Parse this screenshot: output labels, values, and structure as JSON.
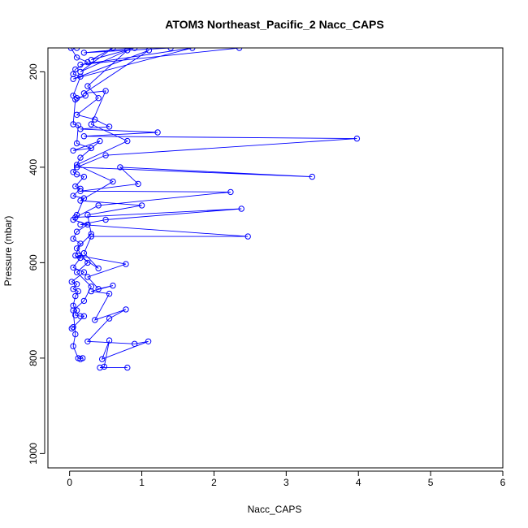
{
  "chart_data": {
    "type": "line",
    "title": "ATOM3 Northeast_Pacific_2 Nacc_CAPS",
    "xlabel": "Nacc_CAPS",
    "ylabel": "Pressure (mbar)",
    "xlim": [
      -0.3,
      6.0
    ],
    "ylim": [
      1030,
      150
    ],
    "y_reversed": true,
    "x_ticks": [
      "0",
      "1",
      "2",
      "3",
      "4",
      "5",
      "6"
    ],
    "y_ticks": [
      "200",
      "400",
      "600",
      "800",
      "1000"
    ],
    "marker": "open-circle",
    "grid": false,
    "colors": {
      "series": "#0000ff",
      "axis": "#000000"
    },
    "series": [
      {
        "points": [
          [
            0.02,
            150
          ],
          [
            0.1,
            170
          ],
          [
            0.25,
            180
          ],
          [
            0.08,
            195
          ],
          [
            0.05,
            205
          ],
          [
            0.15,
            210
          ],
          [
            0.05,
            250
          ],
          [
            0.1,
            255
          ],
          [
            0.22,
            250
          ],
          [
            0.08,
            258
          ],
          [
            0.05,
            310
          ],
          [
            0.12,
            312
          ],
          [
            0.1,
            350
          ],
          [
            0.3,
            360
          ],
          [
            0.05,
            365
          ],
          [
            0.42,
            345
          ],
          [
            0.15,
            380
          ],
          [
            0.05,
            410
          ],
          [
            0.1,
            415
          ],
          [
            0.2,
            420
          ],
          [
            0.08,
            440
          ],
          [
            0.15,
            445
          ],
          [
            0.05,
            460
          ],
          [
            0.2,
            465
          ],
          [
            0.1,
            500
          ],
          [
            0.05,
            510
          ],
          [
            0.25,
            520
          ],
          [
            0.1,
            535
          ],
          [
            0.05,
            550
          ],
          [
            0.15,
            560
          ],
          [
            0.08,
            585
          ],
          [
            0.15,
            590
          ],
          [
            0.05,
            610
          ],
          [
            0.2,
            620
          ],
          [
            0.03,
            640
          ],
          [
            0.1,
            645
          ],
          [
            0.05,
            655
          ],
          [
            0.12,
            660
          ],
          [
            0.08,
            670
          ],
          [
            0.05,
            690
          ],
          [
            0.1,
            700
          ],
          [
            0.08,
            710
          ],
          [
            0.15,
            712
          ],
          [
            0.2,
            712
          ],
          [
            0.05,
            735
          ],
          [
            0.03,
            738
          ]
        ]
      },
      {
        "points": [
          [
            1.4,
            150
          ],
          [
            0.2,
            160
          ],
          [
            0.9,
            150
          ],
          [
            0.3,
            175
          ],
          [
            0.6,
            150
          ],
          [
            0.15,
            200
          ],
          [
            0.8,
            155
          ],
          [
            0.25,
            230
          ],
          [
            0.4,
            255
          ],
          [
            0.1,
            290
          ],
          [
            0.35,
            300
          ],
          [
            0.55,
            315
          ],
          [
            0.15,
            320
          ],
          [
            1.22,
            327
          ],
          [
            0.2,
            335
          ],
          [
            3.98,
            340
          ],
          [
            0.5,
            375
          ],
          [
            0.1,
            400
          ],
          [
            3.36,
            420
          ],
          [
            0.7,
            400
          ],
          [
            0.95,
            435
          ],
          [
            0.15,
            450
          ],
          [
            2.23,
            452
          ],
          [
            0.4,
            480
          ],
          [
            0.08,
            505
          ],
          [
            2.38,
            487
          ],
          [
            0.5,
            510
          ],
          [
            0.15,
            520
          ],
          [
            2.47,
            545
          ],
          [
            0.3,
            545
          ],
          [
            0.2,
            580
          ],
          [
            0.4,
            612
          ],
          [
            0.12,
            585
          ],
          [
            0.78,
            603
          ],
          [
            0.25,
            630
          ],
          [
            0.4,
            655
          ],
          [
            0.6,
            648
          ],
          [
            0.3,
            660
          ],
          [
            0.55,
            665
          ],
          [
            0.35,
            720
          ],
          [
            0.78,
            698
          ],
          [
            0.55,
            717
          ],
          [
            0.25,
            765
          ],
          [
            0.9,
            770
          ],
          [
            1.09,
            765
          ],
          [
            0.45,
            802
          ],
          [
            0.55,
            763
          ],
          [
            0.48,
            818
          ],
          [
            0.42,
            820
          ],
          [
            0.8,
            820
          ]
        ]
      },
      {
        "points": [
          [
            0.1,
            150
          ],
          [
            2.35,
            150
          ],
          [
            0.15,
            185
          ],
          [
            1.7,
            150
          ],
          [
            0.05,
            215
          ],
          [
            1.1,
            155
          ],
          [
            0.2,
            245
          ],
          [
            0.5,
            240
          ],
          [
            0.3,
            310
          ],
          [
            0.8,
            345
          ],
          [
            0.1,
            395
          ],
          [
            0.6,
            430
          ],
          [
            0.15,
            470
          ],
          [
            1.0,
            480
          ],
          [
            0.25,
            500
          ],
          [
            0.3,
            540
          ],
          [
            0.1,
            570
          ],
          [
            0.25,
            600
          ],
          [
            0.1,
            620
          ],
          [
            0.3,
            650
          ],
          [
            0.2,
            680
          ],
          [
            0.05,
            700
          ],
          [
            0.08,
            750
          ],
          [
            0.05,
            775
          ],
          [
            0.12,
            800
          ],
          [
            0.15,
            802
          ],
          [
            0.18,
            800
          ]
        ]
      }
    ]
  }
}
